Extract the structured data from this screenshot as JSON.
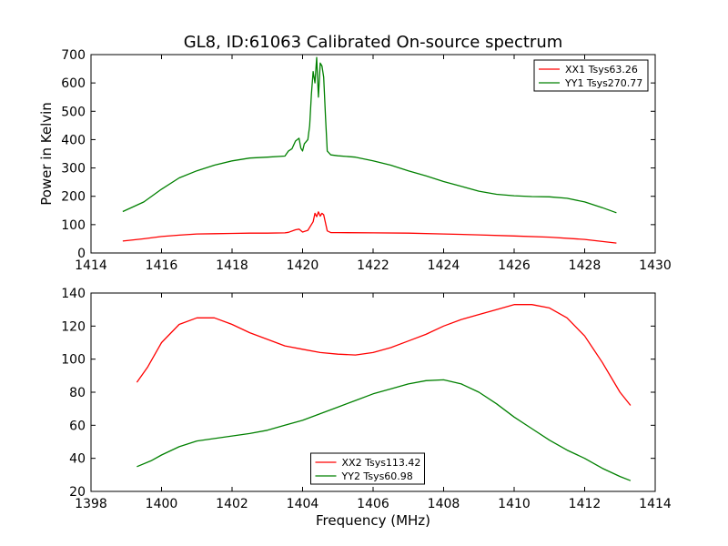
{
  "figure": {
    "title": "GL8, ID:61063 Calibrated On-source spectrum"
  },
  "chart_data": [
    {
      "type": "line",
      "title": "GL8, ID:61063 Calibrated On-source spectrum",
      "xlabel": "",
      "ylabel": "Power in Kelvin",
      "xlim": [
        1414,
        1430
      ],
      "ylim": [
        0,
        700
      ],
      "xticks": [
        1414,
        1416,
        1418,
        1420,
        1422,
        1424,
        1426,
        1428,
        1430
      ],
      "yticks": [
        0,
        100,
        200,
        300,
        400,
        500,
        600,
        700
      ],
      "grid": false,
      "legend_position": "top-right",
      "series": [
        {
          "name": "XX1 Tsys63.26",
          "color": "#ff0000",
          "points": [
            [
              1414.9,
              42
            ],
            [
              1415.5,
              50
            ],
            [
              1416.0,
              58
            ],
            [
              1416.5,
              63
            ],
            [
              1417.0,
              67
            ],
            [
              1417.5,
              68
            ],
            [
              1418.0,
              69
            ],
            [
              1418.5,
              70
            ],
            [
              1419.0,
              70
            ],
            [
              1419.5,
              71
            ],
            [
              1419.6,
              73
            ],
            [
              1419.8,
              82
            ],
            [
              1419.9,
              84
            ],
            [
              1420.0,
              74
            ],
            [
              1420.15,
              80
            ],
            [
              1420.3,
              110
            ],
            [
              1420.35,
              140
            ],
            [
              1420.4,
              128
            ],
            [
              1420.45,
              145
            ],
            [
              1420.5,
              130
            ],
            [
              1420.55,
              140
            ],
            [
              1420.6,
              135
            ],
            [
              1420.7,
              78
            ],
            [
              1420.8,
              72
            ],
            [
              1421.0,
              72
            ],
            [
              1422.0,
              71
            ],
            [
              1423.0,
              70
            ],
            [
              1424.0,
              67
            ],
            [
              1425.0,
              64
            ],
            [
              1426.0,
              60
            ],
            [
              1427.0,
              56
            ],
            [
              1428.0,
              48
            ],
            [
              1428.9,
              35
            ]
          ]
        },
        {
          "name": "YY1 Tsys270.77",
          "color": "#008000",
          "points": [
            [
              1414.9,
              146
            ],
            [
              1415.5,
              180
            ],
            [
              1416.0,
              225
            ],
            [
              1416.5,
              265
            ],
            [
              1417.0,
              290
            ],
            [
              1417.5,
              310
            ],
            [
              1418.0,
              325
            ],
            [
              1418.5,
              335
            ],
            [
              1419.0,
              338
            ],
            [
              1419.5,
              342
            ],
            [
              1419.6,
              360
            ],
            [
              1419.7,
              368
            ],
            [
              1419.8,
              395
            ],
            [
              1419.9,
              405
            ],
            [
              1419.95,
              370
            ],
            [
              1420.0,
              360
            ],
            [
              1420.05,
              385
            ],
            [
              1420.15,
              400
            ],
            [
              1420.2,
              450
            ],
            [
              1420.25,
              560
            ],
            [
              1420.3,
              640
            ],
            [
              1420.35,
              600
            ],
            [
              1420.4,
              690
            ],
            [
              1420.45,
              550
            ],
            [
              1420.5,
              670
            ],
            [
              1420.55,
              660
            ],
            [
              1420.6,
              620
            ],
            [
              1420.65,
              480
            ],
            [
              1420.7,
              360
            ],
            [
              1420.8,
              346
            ],
            [
              1421.0,
              343
            ],
            [
              1421.5,
              338
            ],
            [
              1422.0,
              325
            ],
            [
              1422.5,
              310
            ],
            [
              1423.0,
              290
            ],
            [
              1423.5,
              272
            ],
            [
              1424.0,
              252
            ],
            [
              1424.5,
              235
            ],
            [
              1425.0,
              218
            ],
            [
              1425.5,
              207
            ],
            [
              1426.0,
              202
            ],
            [
              1426.5,
              199
            ],
            [
              1427.0,
              198
            ],
            [
              1427.5,
              193
            ],
            [
              1428.0,
              180
            ],
            [
              1428.5,
              160
            ],
            [
              1428.9,
              142
            ]
          ]
        }
      ]
    },
    {
      "type": "line",
      "title": "",
      "xlabel": "Frequency (MHz)",
      "ylabel": "",
      "xlim": [
        1398,
        1414
      ],
      "ylim": [
        20,
        140
      ],
      "xticks": [
        1398,
        1400,
        1402,
        1404,
        1406,
        1408,
        1410,
        1412,
        1414
      ],
      "yticks": [
        20,
        40,
        60,
        80,
        100,
        120,
        140
      ],
      "grid": false,
      "legend_position": "lower-center",
      "series": [
        {
          "name": "XX2 Tsys113.42",
          "color": "#ff0000",
          "points": [
            [
              1399.3,
              86
            ],
            [
              1399.6,
              95
            ],
            [
              1400.0,
              110
            ],
            [
              1400.5,
              121
            ],
            [
              1401.0,
              125
            ],
            [
              1401.5,
              125
            ],
            [
              1402.0,
              121
            ],
            [
              1402.5,
              116
            ],
            [
              1403.0,
              112
            ],
            [
              1403.5,
              108
            ],
            [
              1404.0,
              106
            ],
            [
              1404.5,
              104
            ],
            [
              1405.0,
              103
            ],
            [
              1405.5,
              102.5
            ],
            [
              1406.0,
              104
            ],
            [
              1406.5,
              107
            ],
            [
              1407.0,
              111
            ],
            [
              1407.5,
              115
            ],
            [
              1408.0,
              120
            ],
            [
              1408.5,
              124
            ],
            [
              1409.0,
              127
            ],
            [
              1409.5,
              130
            ],
            [
              1410.0,
              133
            ],
            [
              1410.5,
              133
            ],
            [
              1411.0,
              131
            ],
            [
              1411.5,
              125
            ],
            [
              1412.0,
              114
            ],
            [
              1412.5,
              98
            ],
            [
              1413.0,
              80
            ],
            [
              1413.3,
              72
            ]
          ]
        },
        {
          "name": "YY2 Tsys60.98",
          "color": "#008000",
          "points": [
            [
              1399.3,
              35
            ],
            [
              1399.7,
              38.5
            ],
            [
              1400.0,
              42
            ],
            [
              1400.5,
              47
            ],
            [
              1401.0,
              50.5
            ],
            [
              1401.5,
              52
            ],
            [
              1402.0,
              53.5
            ],
            [
              1402.5,
              55
            ],
            [
              1403.0,
              57
            ],
            [
              1403.5,
              60
            ],
            [
              1404.0,
              63
            ],
            [
              1404.5,
              67
            ],
            [
              1405.0,
              71
            ],
            [
              1405.5,
              75
            ],
            [
              1406.0,
              79
            ],
            [
              1406.5,
              82
            ],
            [
              1407.0,
              85
            ],
            [
              1407.5,
              87
            ],
            [
              1408.0,
              87.5
            ],
            [
              1408.5,
              85
            ],
            [
              1409.0,
              80
            ],
            [
              1409.5,
              73
            ],
            [
              1410.0,
              65
            ],
            [
              1410.5,
              58
            ],
            [
              1411.0,
              51
            ],
            [
              1411.5,
              45
            ],
            [
              1412.0,
              40
            ],
            [
              1412.5,
              34
            ],
            [
              1413.0,
              29
            ],
            [
              1413.3,
              26.5
            ]
          ]
        }
      ]
    }
  ]
}
